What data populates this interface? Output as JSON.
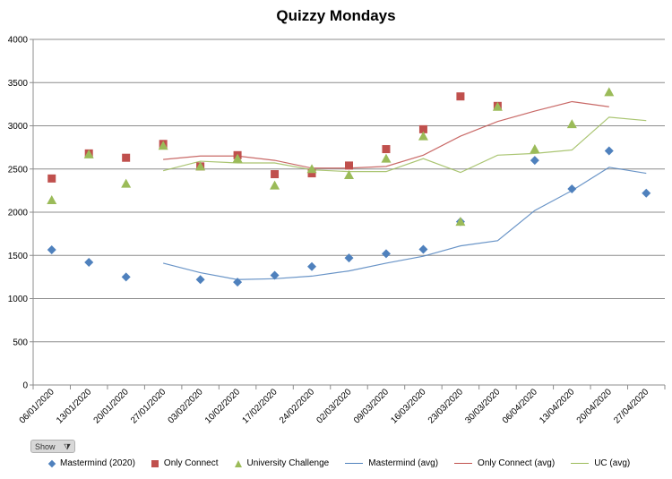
{
  "chart_data": {
    "type": "scatter",
    "title": "Quizzy Mondays",
    "categories": [
      "06/01/2020",
      "13/01/2020",
      "20/01/2020",
      "27/01/2020",
      "03/02/2020",
      "10/02/2020",
      "17/02/2020",
      "24/02/2020",
      "02/03/2020",
      "09/03/2020",
      "16/03/2020",
      "23/03/2020",
      "30/03/2020",
      "06/04/2020",
      "13/04/2020",
      "20/04/2020",
      "27/04/2020"
    ],
    "ylim": [
      0,
      4000
    ],
    "yticks": [
      0,
      500,
      1000,
      1500,
      2000,
      2500,
      3000,
      3500,
      4000
    ],
    "grid": true,
    "legend_position": "bottom",
    "series": [
      {
        "name": "Mastermind (2020)",
        "kind": "marker",
        "marker": "diamond",
        "color": "#4f81bd",
        "values": [
          1565,
          1420,
          1250,
          null,
          1220,
          1190,
          1270,
          1370,
          1470,
          1520,
          1570,
          1890,
          null,
          2600,
          2270,
          2710,
          2220
        ]
      },
      {
        "name": "Only Connect",
        "kind": "marker",
        "marker": "square",
        "color": "#c0504d",
        "values": [
          2390,
          2680,
          2630,
          2790,
          2530,
          2660,
          2440,
          2450,
          2540,
          2730,
          2960,
          3340,
          3230,
          null,
          null,
          null,
          null
        ]
      },
      {
        "name": "University Challenge",
        "kind": "marker",
        "marker": "triangle",
        "color": "#9bbb59",
        "values": [
          2140,
          2670,
          2330,
          2770,
          2530,
          2620,
          2310,
          2500,
          2430,
          2620,
          2880,
          1890,
          3220,
          2730,
          3020,
          3390,
          null
        ]
      },
      {
        "name": "Mastermind (avg)",
        "kind": "line",
        "color": "#4f81bd",
        "values": [
          null,
          null,
          null,
          1410,
          1300,
          1220,
          1230,
          1260,
          1320,
          1410,
          1490,
          1610,
          1670,
          2020,
          2250,
          2520,
          2450
        ]
      },
      {
        "name": "Only Connect (avg)",
        "kind": "line",
        "color": "#c0504d",
        "values": [
          null,
          null,
          null,
          2610,
          2650,
          2650,
          2600,
          2510,
          2510,
          2530,
          2660,
          2880,
          3050,
          3170,
          3280,
          3220,
          null
        ]
      },
      {
        "name": "UC (avg)",
        "kind": "line",
        "color": "#9bbb59",
        "values": [
          null,
          null,
          null,
          2480,
          2590,
          2570,
          2570,
          2490,
          2470,
          2470,
          2620,
          2460,
          2660,
          2680,
          2720,
          3100,
          3060
        ]
      }
    ]
  },
  "controls": {
    "show_label": "Show"
  }
}
